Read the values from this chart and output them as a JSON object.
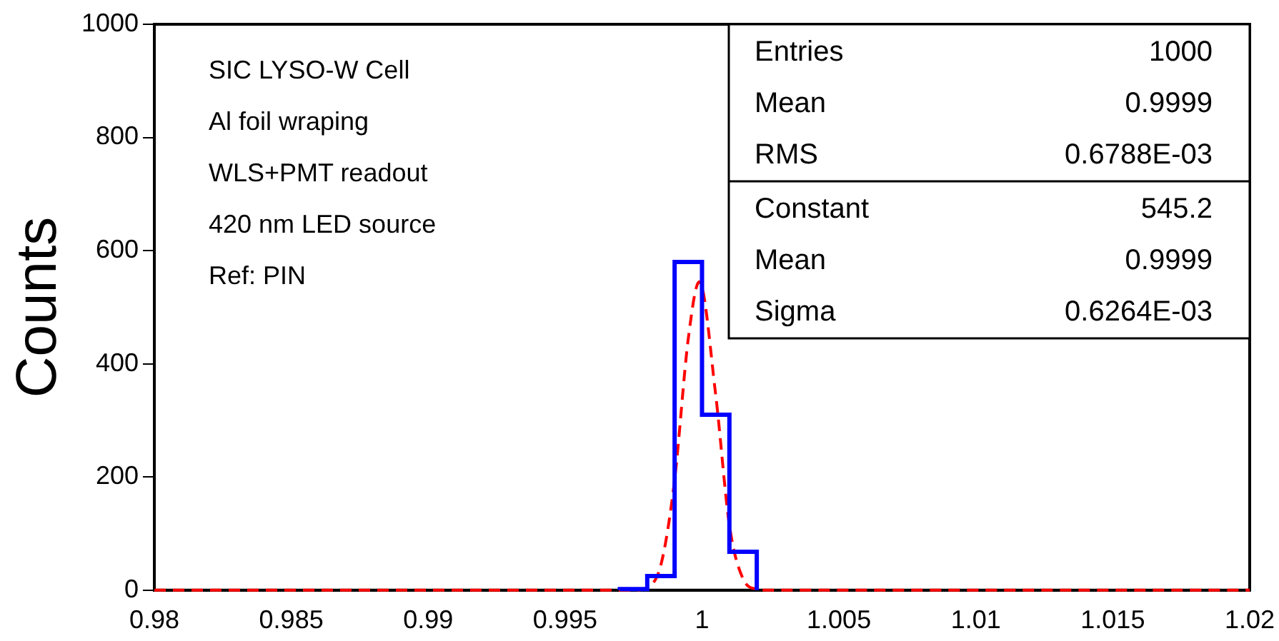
{
  "chart_data": {
    "type": "histogram",
    "ylabel": "Counts",
    "bins": [
      0.997,
      0.998,
      0.999,
      1.0,
      1.001,
      1.002
    ],
    "values": [
      2,
      25,
      580,
      310,
      68
    ],
    "color": "#0000ff",
    "series": [
      {
        "type": "line",
        "color": "#ff0000",
        "line_style": "dashed",
        "x": [
          0.98,
          0.997,
          0.9975,
          0.998,
          0.9985,
          0.999,
          0.9995,
          0.9999,
          1.0005,
          1.001,
          1.0015,
          1.002,
          1.0025,
          1.02
        ],
        "values": [
          0,
          0,
          0,
          5,
          45,
          195,
          445,
          545,
          345,
          115,
          20,
          2,
          0,
          0
        ]
      }
    ],
    "xlim": [
      0.98,
      1.02
    ],
    "xticks": [
      0.98,
      0.985,
      0.99,
      0.995,
      1,
      1.005,
      1.01,
      1.015,
      1.02
    ],
    "ylim": [
      0,
      1000
    ],
    "yticks": [
      0,
      200,
      400,
      600,
      800,
      1000
    ],
    "grid": false,
    "legend": false,
    "annotations": [
      "SIC LYSO-W Cell",
      "Al foil wraping",
      "WLS+PMT readout",
      "420 nm LED source",
      "Ref: PIN",
      "Entries",
      "1000",
      "Mean",
      "0.9999",
      "RMS",
      "0.6788E-03",
      "Constant",
      "545.2",
      "Mean",
      "0.9999",
      "Sigma",
      "0.6264E-03"
    ]
  }
}
